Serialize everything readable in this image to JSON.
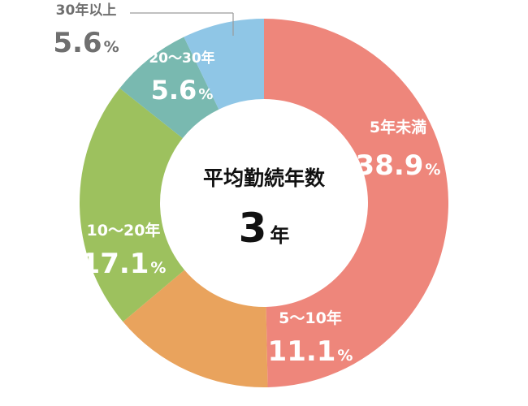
{
  "chart_data": {
    "type": "pie",
    "style": "donut",
    "center": {
      "title": "平均勤続年数",
      "value": "3",
      "unit": "年"
    },
    "categories": [
      "5年未満",
      "5～10年",
      "10～20年",
      "20～30年",
      "30年以上"
    ],
    "values": [
      38.9,
      11.1,
      17.1,
      5.6,
      5.6
    ],
    "value_labels": [
      "38.9",
      "11.1",
      "17.1",
      "5.6",
      "5.6"
    ],
    "percent_sign": "%",
    "colors": [
      "#ee867b",
      "#e9a35d",
      "#9dc15e",
      "#79b9b0",
      "#8fc6e6"
    ],
    "label_colors": [
      "#ffffff",
      "#ffffff",
      "#ffffff",
      "#ffffff",
      "#6f6f6f"
    ],
    "outside_label_index": 4
  }
}
